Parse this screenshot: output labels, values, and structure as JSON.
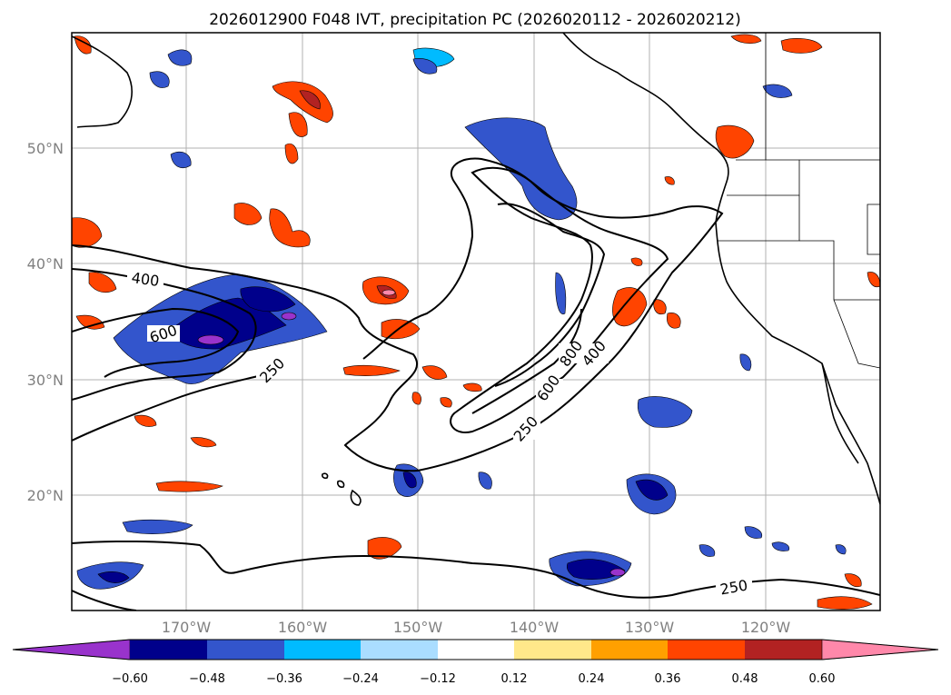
{
  "title": "2026012900 F048 IVT, precipitation PC (2026020112 - 2026020212)",
  "lat_labels": [
    "50°N",
    "40°N",
    "30°N",
    "20°N"
  ],
  "lon_labels": [
    "170°W",
    "160°W",
    "150°W",
    "140°W",
    "130°W",
    "120°W"
  ],
  "contour_labels": [
    "400",
    "600",
    "250",
    "600",
    "800",
    "400",
    "250",
    "250"
  ],
  "colorbar": {
    "ticks": [
      "−0.60",
      "−0.48",
      "−0.36",
      "−0.24",
      "−0.12",
      "0.12",
      "0.24",
      "0.36",
      "0.48",
      "0.60"
    ],
    "colors": [
      "#9933cc",
      "#00008b",
      "#3355cc",
      "#00bbff",
      "#aaddff",
      "#ffffff",
      "#ffe88a",
      "#ffa000",
      "#ff4400",
      "#b22222",
      "#ff88aa"
    ]
  },
  "colors": {
    "coast": "#000000",
    "grid": "#b0b0b0",
    "ivt_contour": "#000000"
  }
}
